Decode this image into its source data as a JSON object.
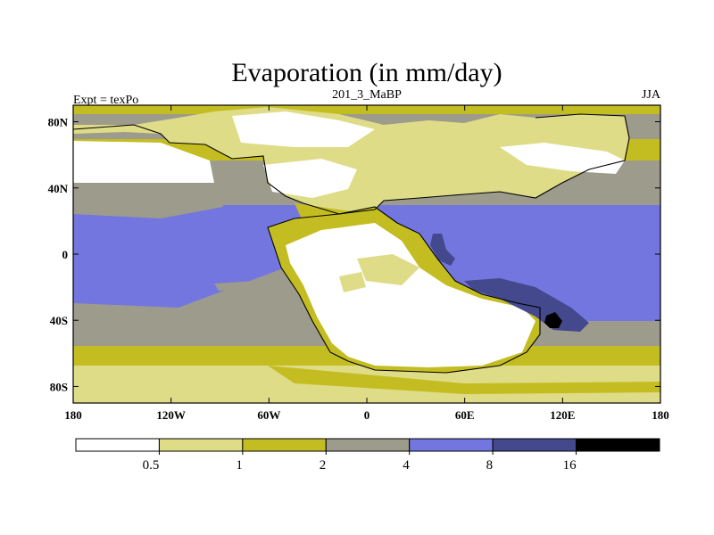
{
  "figure": {
    "title": "Evaporation (in mm/day)",
    "left_string": "Expt = texPo",
    "center_string": "201_3_MaBP",
    "right_string": "JJA"
  },
  "map": {
    "x_ticks": [
      "180",
      "120W",
      "60W",
      "0",
      "60E",
      "120E",
      "180"
    ],
    "y_ticks": [
      "80N",
      "40N",
      "0",
      "40S",
      "80S"
    ],
    "lon_range": [
      -180,
      180
    ],
    "lat_range": [
      -90,
      90
    ]
  },
  "colorbar": {
    "levels": [
      "0.5",
      "1",
      "2",
      "4",
      "8",
      "16"
    ],
    "colors": [
      "#ffffff",
      "#dfdc88",
      "#c4bd22",
      "#9d9b8b",
      "#7476e0",
      "#44488c",
      "#000000"
    ]
  }
}
